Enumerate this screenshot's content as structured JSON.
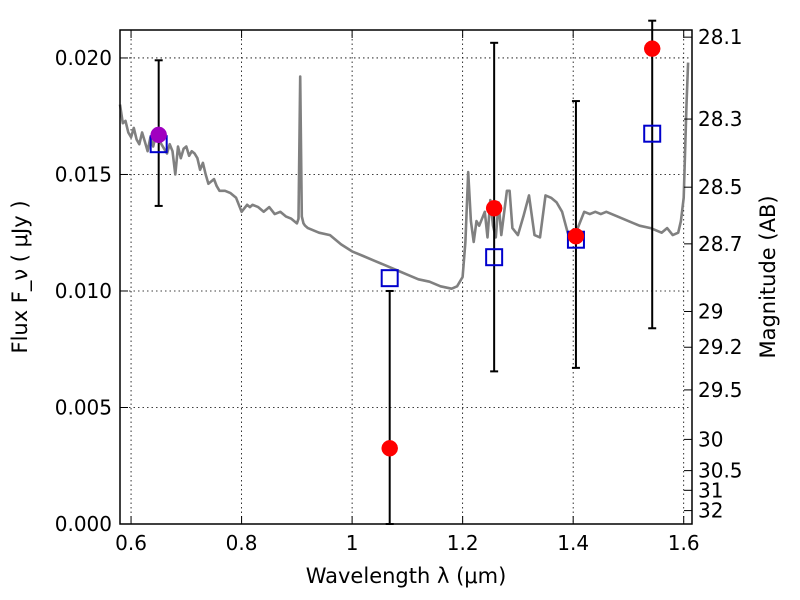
{
  "chart_data": {
    "type": "scatter",
    "xlabel": "Wavelength  λ (μm)",
    "ylabel": "Flux  F_ν  ( μJy )",
    "ylabel_right": "Magnitude (AB)",
    "xlim": [
      0.58,
      1.615
    ],
    "ylim": [
      0.0,
      0.0212
    ],
    "grid": true,
    "x_ticks": [
      {
        "value": 0.6,
        "label": "0.6"
      },
      {
        "value": 0.8,
        "label": "0.8"
      },
      {
        "value": 1.0,
        "label": "1"
      },
      {
        "value": 1.2,
        "label": "1.2"
      },
      {
        "value": 1.4,
        "label": "1.4"
      },
      {
        "value": 1.6,
        "label": "1.6"
      }
    ],
    "y_ticks": [
      {
        "value": 0.0,
        "label": "0.000"
      },
      {
        "value": 0.005,
        "label": "0.005"
      },
      {
        "value": 0.01,
        "label": "0.010"
      },
      {
        "value": 0.015,
        "label": "0.015"
      },
      {
        "value": 0.02,
        "label": "0.020"
      }
    ],
    "mag_ticks": [
      {
        "value": 28.1,
        "label": "28.1"
      },
      {
        "value": 28.3,
        "label": "28.3"
      },
      {
        "value": 28.5,
        "label": "28.5"
      },
      {
        "value": 28.7,
        "label": "28.7"
      },
      {
        "value": 29.0,
        "label": "29"
      },
      {
        "value": 29.2,
        "label": "29.2"
      },
      {
        "value": 29.5,
        "label": "29.5"
      },
      {
        "value": 30.0,
        "label": "30"
      },
      {
        "value": 30.5,
        "label": "30.5"
      },
      {
        "value": 31.0,
        "label": "31"
      },
      {
        "value": 32.0,
        "label": "32"
      }
    ],
    "series": [
      {
        "kind": "line",
        "color": "#808080",
        "x": [
          0.58,
          0.585,
          0.59,
          0.595,
          0.6,
          0.605,
          0.61,
          0.615,
          0.62,
          0.625,
          0.63,
          0.635,
          0.64,
          0.645,
          0.65,
          0.655,
          0.66,
          0.665,
          0.67,
          0.675,
          0.68,
          0.685,
          0.69,
          0.695,
          0.7,
          0.705,
          0.71,
          0.715,
          0.72,
          0.725,
          0.73,
          0.735,
          0.74,
          0.75,
          0.755,
          0.76,
          0.77,
          0.78,
          0.79,
          0.8,
          0.81,
          0.815,
          0.82,
          0.83,
          0.84,
          0.85,
          0.86,
          0.87,
          0.88,
          0.89,
          0.9,
          0.903,
          0.906,
          0.909,
          0.912,
          0.915,
          0.92,
          0.94,
          0.96,
          0.98,
          1.0,
          1.02,
          1.04,
          1.06,
          1.08,
          1.1,
          1.12,
          1.14,
          1.16,
          1.18,
          1.19,
          1.2,
          1.205,
          1.21,
          1.215,
          1.22,
          1.225,
          1.23,
          1.24,
          1.245,
          1.25,
          1.255,
          1.26,
          1.265,
          1.27,
          1.28,
          1.285,
          1.29,
          1.3,
          1.31,
          1.32,
          1.33,
          1.34,
          1.35,
          1.36,
          1.37,
          1.38,
          1.39,
          1.4,
          1.41,
          1.42,
          1.43,
          1.44,
          1.45,
          1.46,
          1.48,
          1.5,
          1.52,
          1.54,
          1.56,
          1.57,
          1.58,
          1.59,
          1.595,
          1.6,
          1.605,
          1.608
        ],
        "y": [
          0.018,
          0.0172,
          0.0173,
          0.0168,
          0.0166,
          0.017,
          0.0165,
          0.0163,
          0.0168,
          0.0164,
          0.016,
          0.0166,
          0.0162,
          0.0167,
          0.0165,
          0.0163,
          0.0161,
          0.0159,
          0.0163,
          0.016,
          0.015,
          0.0162,
          0.0157,
          0.0161,
          0.0162,
          0.0158,
          0.016,
          0.0159,
          0.0157,
          0.0152,
          0.0155,
          0.015,
          0.0146,
          0.0148,
          0.0145,
          0.0143,
          0.0143,
          0.0142,
          0.014,
          0.0134,
          0.0137,
          0.0136,
          0.0137,
          0.0136,
          0.0134,
          0.0136,
          0.0133,
          0.0134,
          0.0132,
          0.0131,
          0.0129,
          0.0131,
          0.0192,
          0.0132,
          0.0129,
          0.0128,
          0.0127,
          0.0125,
          0.0124,
          0.012,
          0.0117,
          0.0115,
          0.0113,
          0.0111,
          0.0109,
          0.0107,
          0.0105,
          0.0104,
          0.0102,
          0.0101,
          0.0102,
          0.0106,
          0.0121,
          0.0151,
          0.013,
          0.0121,
          0.013,
          0.0128,
          0.0134,
          0.0123,
          0.0139,
          0.0128,
          0.0123,
          0.0138,
          0.0124,
          0.0143,
          0.0143,
          0.0127,
          0.0124,
          0.0132,
          0.0141,
          0.0124,
          0.0123,
          0.0141,
          0.014,
          0.0138,
          0.0134,
          0.0125,
          0.0122,
          0.0128,
          0.0134,
          0.0133,
          0.0134,
          0.0133,
          0.0134,
          0.0132,
          0.013,
          0.0128,
          0.0127,
          0.0125,
          0.0127,
          0.0124,
          0.0125,
          0.013,
          0.014,
          0.018,
          0.0198
        ]
      },
      {
        "kind": "errorbar",
        "color": "#000000",
        "points": [
          {
            "x": 0.65,
            "low": 0.01365,
            "high": 0.0199
          },
          {
            "x": 1.068,
            "low": 0.0,
            "high": 0.01
          },
          {
            "x": 1.257,
            "low": 0.00655,
            "high": 0.02065
          },
          {
            "x": 1.405,
            "low": 0.0067,
            "high": 0.01815
          },
          {
            "x": 1.543,
            "low": 0.0084,
            "high": 0.0216
          }
        ]
      },
      {
        "kind": "markers",
        "marker": "square-open",
        "color": "#0000cc",
        "x": [
          0.65,
          1.068,
          1.257,
          1.405,
          1.543
        ],
        "y": [
          0.0163,
          0.01055,
          0.01145,
          0.0122,
          0.01675
        ]
      },
      {
        "kind": "markers",
        "marker": "circle",
        "color": "#ff0000",
        "x": [
          1.068,
          1.257,
          1.405,
          1.543
        ],
        "y": [
          0.00325,
          0.01355,
          0.01235,
          0.0204
        ]
      },
      {
        "kind": "markers",
        "marker": "circle",
        "color": "#a000c0",
        "x": [
          0.65
        ],
        "y": [
          0.0167
        ]
      }
    ]
  }
}
